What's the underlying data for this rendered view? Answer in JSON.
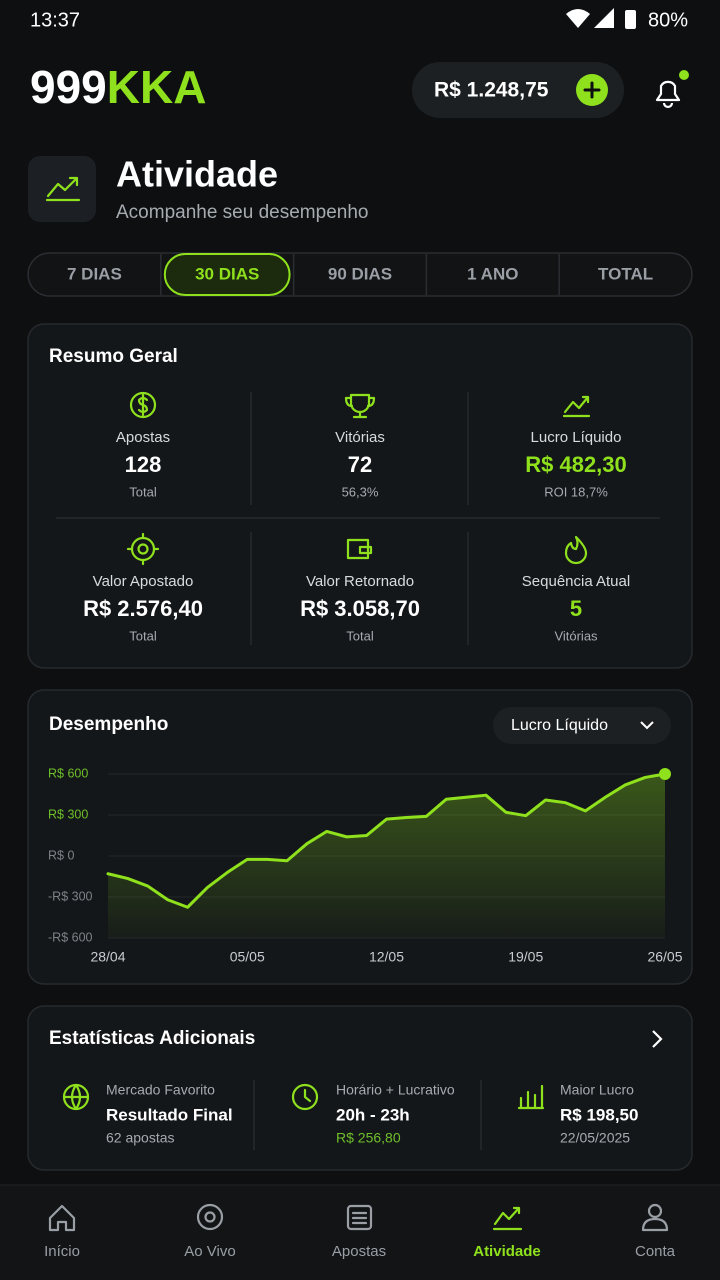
{
  "status_bar": {
    "time": "13:37",
    "battery": "80%"
  },
  "header": {
    "logo_a": "999",
    "logo_b": "KKA",
    "balance": "R$ 1.248,75"
  },
  "page": {
    "title": "Atividade",
    "subtitle": "Acompanhe seu desempenho"
  },
  "tabs": {
    "items": [
      "7 DIAS",
      "30 DIAS",
      "90 DIAS",
      "1 ANO",
      "TOTAL"
    ],
    "active": 1
  },
  "summary": {
    "title": "Resumo Geral",
    "items": [
      {
        "label": "Apostas",
        "value": "128",
        "note": "Total",
        "accent": false
      },
      {
        "label": "Vitórias",
        "value": "72",
        "note": "56,3%",
        "accent": false
      },
      {
        "label": "Lucro Líquido",
        "value": "R$ 482,30",
        "note": "ROI 18,7%",
        "accent": true
      },
      {
        "label": "Valor Apostado",
        "value": "R$ 2.576,40",
        "note": "Total",
        "accent": false
      },
      {
        "label": "Valor Retornado",
        "value": "R$ 3.058,70",
        "note": "Total",
        "accent": false
      },
      {
        "label": "Sequência Atual",
        "value": "5",
        "note": "Vitórias",
        "accent": true
      }
    ]
  },
  "chart_filter": "Lucro Líquido",
  "chart_data": {
    "type": "line",
    "title": "Desempenho",
    "categories": [
      "28/04",
      null,
      null,
      null,
      null,
      null,
      null,
      "05/05",
      null,
      null,
      null,
      null,
      null,
      null,
      "12/05",
      null,
      null,
      null,
      null,
      null,
      null,
      "19/05",
      null,
      null,
      null,
      null,
      null,
      null,
      "26/05"
    ],
    "series": [
      {
        "name": "Lucro Líquido",
        "color": "#8ee11c",
        "values": [
          -130,
          -165,
          -220,
          -320,
          -375,
          -230,
          -120,
          -25,
          -25,
          -35,
          90,
          180,
          140,
          150,
          270,
          282,
          290,
          415,
          430,
          445,
          320,
          295,
          410,
          390,
          330,
          430,
          520,
          575,
          600
        ]
      }
    ],
    "ylim": [
      -600,
      600
    ],
    "yticks": [
      {
        "value": -600,
        "label": "-R$ 600"
      },
      {
        "value": -300,
        "label": "-R$ 300"
      },
      {
        "value": 0,
        "label": "R$ 0"
      },
      {
        "value": 300,
        "label": "R$ 300"
      },
      {
        "value": 600,
        "label": "R$ 600"
      }
    ],
    "grid": true
  },
  "extra": {
    "title": "Estatísticas Adicionais",
    "items": [
      {
        "label": "Mercado Favorito",
        "value": "Resultado Final",
        "note": "62 apostas",
        "accent": false
      },
      {
        "label": "Horário + Lucrativo",
        "value": "20h - 23h",
        "note": "R$ 256,80",
        "accent": true
      },
      {
        "label": "Maior Lucro",
        "value": "R$ 198,50",
        "note": "22/05/2025",
        "accent": false
      }
    ]
  },
  "nav": {
    "items": [
      "Início",
      "Ao Vivo",
      "Apostas",
      "Atividade",
      "Conta"
    ],
    "active": 3
  }
}
